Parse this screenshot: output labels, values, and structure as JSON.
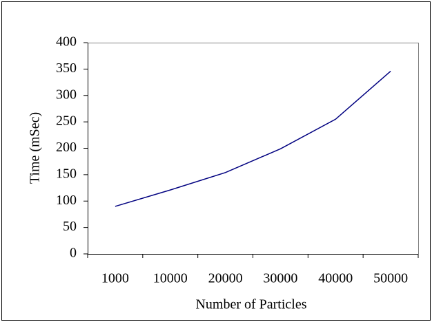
{
  "chart_data": {
    "type": "line",
    "x_label": "Number of Particles",
    "y_label": "Time (mSec)",
    "categories": [
      "1000",
      "10000",
      "20000",
      "30000",
      "40000",
      "50000"
    ],
    "series": [
      {
        "name": "Time",
        "color": "#000080",
        "values": [
          90,
          121,
          154,
          199,
          255,
          346
        ]
      }
    ],
    "ylim": [
      0,
      400
    ],
    "yticks": [
      0,
      50,
      100,
      150,
      200,
      250,
      300,
      350,
      400
    ],
    "grid": false
  }
}
